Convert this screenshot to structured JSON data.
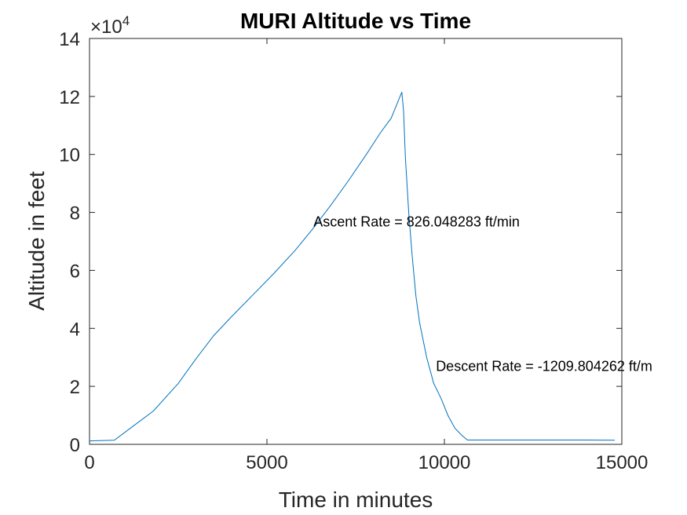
{
  "chart_data": {
    "type": "line",
    "title": "MURI Altitude vs Time",
    "xlabel": "Time in minutes",
    "ylabel": "Altitude in feet",
    "xlim": [
      0,
      15000
    ],
    "ylim": [
      0,
      140000
    ],
    "x_ticks": [
      0,
      5000,
      10000,
      15000
    ],
    "x_tick_labels": [
      "0",
      "5000",
      "10000",
      "15000"
    ],
    "y_ticks": [
      0,
      20000,
      40000,
      60000,
      80000,
      100000,
      120000,
      140000
    ],
    "y_tick_labels": [
      "0",
      "2",
      "4",
      "6",
      "8",
      "10",
      "12",
      "14"
    ],
    "y_exponent_label": "×10",
    "y_exponent_power": "4",
    "grid": false,
    "line_color": "#0072BD",
    "series": [
      {
        "x": [
          0,
          700,
          1200,
          1800,
          2500,
          3000,
          3500,
          4000,
          4600,
          5200,
          5800,
          6300,
          6800,
          7300,
          7800,
          8200,
          8500,
          8800,
          8850,
          8900,
          9000,
          9100,
          9200,
          9300,
          9500,
          9700,
          9900,
          10100,
          10300,
          10500,
          10650,
          11000,
          12000,
          13000,
          14000,
          14800
        ],
        "y": [
          1200,
          1400,
          6000,
          11500,
          21000,
          29500,
          37500,
          44000,
          51500,
          59000,
          67000,
          74500,
          82500,
          91000,
          100000,
          107500,
          112500,
          121500,
          115000,
          99000,
          79000,
          64000,
          51000,
          42000,
          30000,
          21000,
          16000,
          10000,
          5500,
          3000,
          1500,
          1500,
          1500,
          1500,
          1500,
          1400
        ]
      }
    ],
    "annotations": [
      {
        "text": "Ascent Rate = 826.048283 ft/min",
        "x": 6310,
        "y": 76800
      },
      {
        "text": "Descent Rate = -1209.804262 ft/m",
        "x": 9760,
        "y": 27000
      }
    ]
  }
}
